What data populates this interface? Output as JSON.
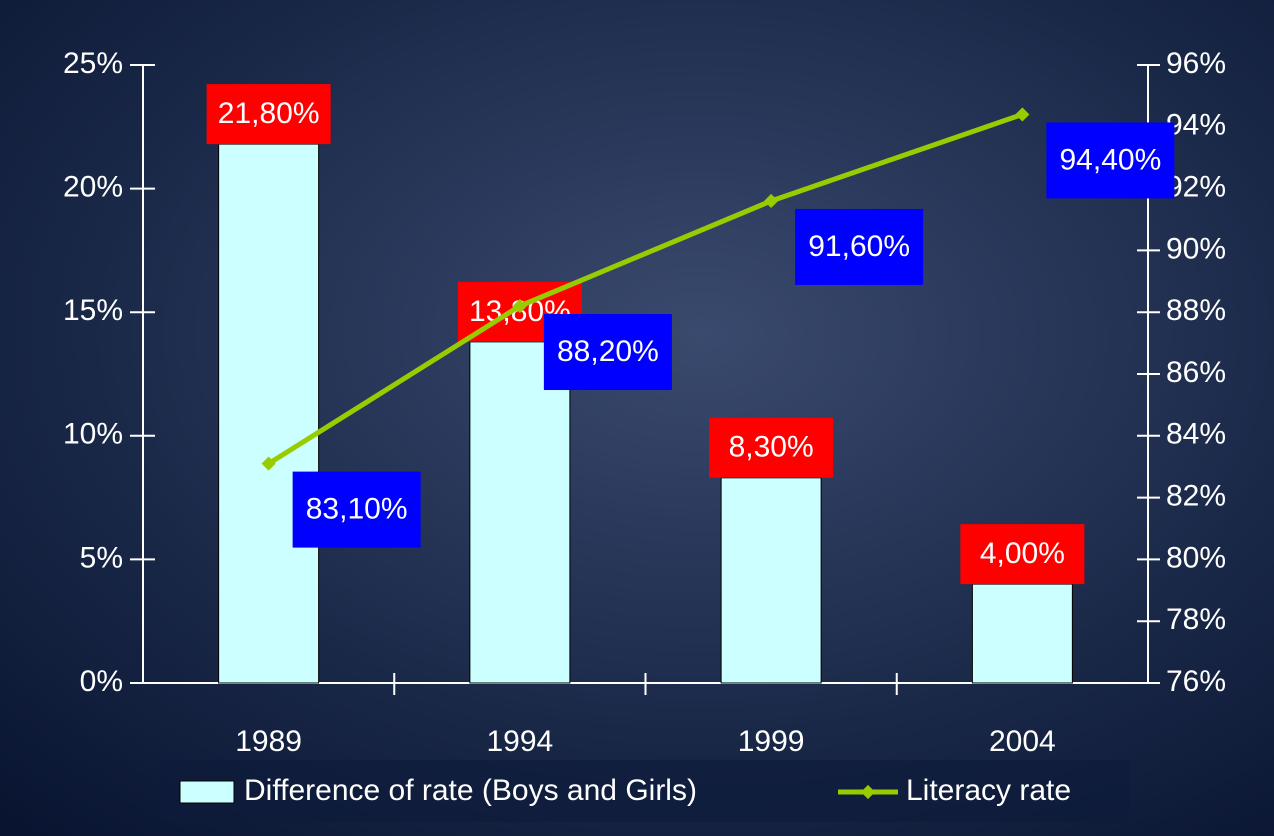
{
  "chart_data": {
    "type": "combo",
    "categories": [
      "1989",
      "1994",
      "1999",
      "2004"
    ],
    "series": [
      {
        "name": "Difference of rate (Boys and Girls)",
        "type": "bar",
        "color": "#ccffff",
        "values": [
          21.8,
          13.8,
          8.3,
          4.0
        ],
        "value_labels": [
          "21,80%",
          "13,80%",
          "8,30%",
          "4,00%"
        ],
        "label_color": "#ff0000"
      },
      {
        "name": "Literacy rate",
        "type": "line",
        "axis": "y2",
        "color": "#99cc00",
        "values": [
          83.1,
          88.2,
          91.6,
          94.4
        ],
        "value_labels": [
          "83,10%",
          "88,20%",
          "91,60%",
          "94,40%"
        ],
        "label_color": "#0000ff"
      }
    ],
    "ylim": [
      0,
      25
    ],
    "yticks": [
      {
        "value": 0,
        "label": "0%"
      },
      {
        "value": 5,
        "label": "5%"
      },
      {
        "value": 10,
        "label": "10%"
      },
      {
        "value": 15,
        "label": "15%"
      },
      {
        "value": 20,
        "label": "20%"
      },
      {
        "value": 25,
        "label": "25%"
      }
    ],
    "y2lim": [
      76,
      96
    ],
    "y2ticks": [
      {
        "value": 76,
        "label": "76%"
      },
      {
        "value": 78,
        "label": "78%"
      },
      {
        "value": 80,
        "label": "80%"
      },
      {
        "value": 82,
        "label": "82%"
      },
      {
        "value": 84,
        "label": "84%"
      },
      {
        "value": 86,
        "label": "86%"
      },
      {
        "value": 88,
        "label": "88%"
      },
      {
        "value": 90,
        "label": "90%"
      },
      {
        "value": 92,
        "label": "92%"
      },
      {
        "value": 94,
        "label": "94%"
      },
      {
        "value": 96,
        "label": "96%"
      }
    ],
    "legend": "bottom"
  }
}
